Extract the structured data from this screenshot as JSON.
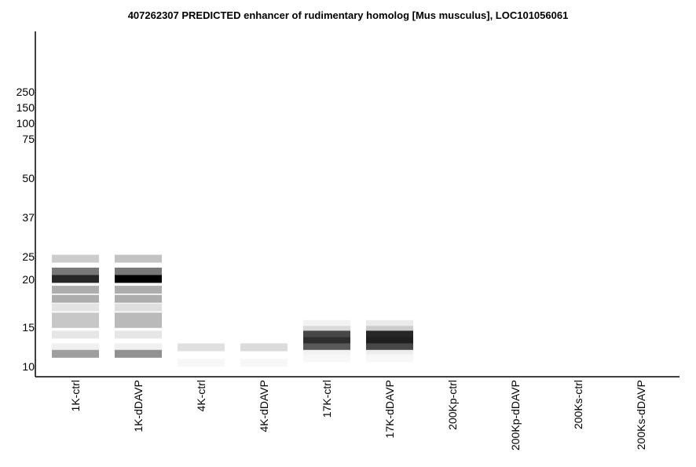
{
  "chart_data": {
    "type": "heatmap",
    "title": "407262307 PREDICTED  enhancer of rudimentary homolog [Mus musculus], LOC101056061",
    "xlabel": "",
    "ylabel": "",
    "y_scale": "log",
    "y_tick_labels": [
      "250",
      "150",
      "100",
      "75",
      "50",
      "37",
      "25",
      "20",
      "15",
      "10"
    ],
    "y_tick_values": [
      250,
      150,
      100,
      75,
      50,
      37,
      25,
      20,
      15,
      10
    ],
    "lanes": [
      "1K-ctrl",
      "1K-dDAVP",
      "4K-ctrl",
      "4K-dDAVP",
      "17K-ctrl",
      "17K-dDAVP",
      "200Kp-ctrl",
      "200Kp-dDAVP",
      "200Ks-ctrl",
      "200Ks-dDAVP"
    ],
    "bands": [
      {
        "lane": 0,
        "bands": [
          {
            "mw": 24.5,
            "intensity": 0.2
          },
          {
            "mw": 21.6,
            "intensity": 0.53
          },
          {
            "mw": 20.1,
            "intensity": 0.85
          },
          {
            "mw": 18.8,
            "intensity": 0.32
          },
          {
            "mw": 17.8,
            "intensity": 0.32
          },
          {
            "mw": 16.9,
            "intensity": 0.11
          },
          {
            "mw": 16.0,
            "intensity": 0.22
          },
          {
            "mw": 15.3,
            "intensity": 0.22
          },
          {
            "mw": 13.9,
            "intensity": 0.1
          },
          {
            "mw": 12.2,
            "intensity": 0.06
          },
          {
            "mw": 11.4,
            "intensity": 0.38
          }
        ]
      },
      {
        "lane": 1,
        "bands": [
          {
            "mw": 24.5,
            "intensity": 0.24
          },
          {
            "mw": 21.6,
            "intensity": 0.53
          },
          {
            "mw": 20.1,
            "intensity": 1.0
          },
          {
            "mw": 18.8,
            "intensity": 0.32
          },
          {
            "mw": 17.8,
            "intensity": 0.32
          },
          {
            "mw": 16.9,
            "intensity": 0.13
          },
          {
            "mw": 16.0,
            "intensity": 0.27
          },
          {
            "mw": 15.3,
            "intensity": 0.27
          },
          {
            "mw": 13.9,
            "intensity": 0.1
          },
          {
            "mw": 12.2,
            "intensity": 0.06
          },
          {
            "mw": 11.4,
            "intensity": 0.43
          }
        ]
      },
      {
        "lane": 2,
        "bands": [
          {
            "mw": 12.2,
            "intensity": 0.12
          },
          {
            "mw": 10.4,
            "intensity": 0.03
          }
        ]
      },
      {
        "lane": 3,
        "bands": [
          {
            "mw": 12.2,
            "intensity": 0.14
          },
          {
            "mw": 10.4,
            "intensity": 0.03
          }
        ]
      },
      {
        "lane": 4,
        "bands": [
          {
            "mw": 15.3,
            "intensity": 0.05
          },
          {
            "mw": 14.6,
            "intensity": 0.15
          },
          {
            "mw": 13.9,
            "intensity": 0.72
          },
          {
            "mw": 13.0,
            "intensity": 0.82
          },
          {
            "mw": 12.2,
            "intensity": 0.65
          },
          {
            "mw": 11.4,
            "intensity": 0.05
          },
          {
            "mw": 10.9,
            "intensity": 0.03
          }
        ]
      },
      {
        "lane": 5,
        "bands": [
          {
            "mw": 15.3,
            "intensity": 0.08
          },
          {
            "mw": 14.6,
            "intensity": 0.2
          },
          {
            "mw": 13.9,
            "intensity": 0.85
          },
          {
            "mw": 13.0,
            "intensity": 0.88
          },
          {
            "mw": 12.2,
            "intensity": 0.72
          },
          {
            "mw": 11.4,
            "intensity": 0.07
          },
          {
            "mw": 10.9,
            "intensity": 0.03
          }
        ]
      },
      {
        "lane": 6,
        "bands": []
      },
      {
        "lane": 7,
        "bands": []
      },
      {
        "lane": 8,
        "bands": []
      },
      {
        "lane": 9,
        "bands": []
      }
    ]
  }
}
